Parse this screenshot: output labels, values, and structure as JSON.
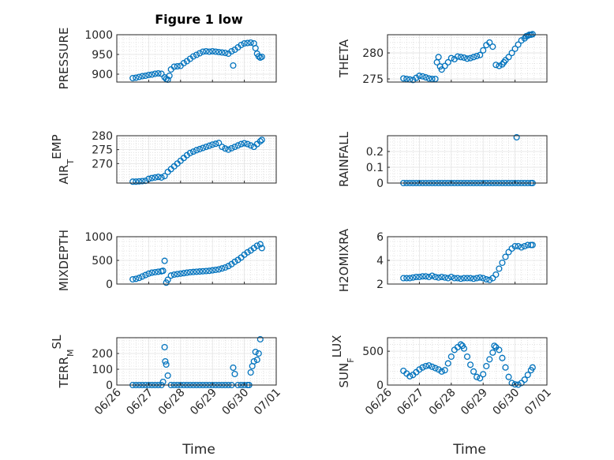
{
  "figure_title": "Figure 1 low",
  "marker_color": "#0072BD",
  "x_ticks": [
    "06/26",
    "06/27",
    "06/28",
    "06/29",
    "06/30",
    "07/01"
  ],
  "x_label": "Time",
  "chart_data": [
    {
      "type": "scatter",
      "id": "pressure",
      "ylabel": "PRESSURE",
      "title": "Figure 1 low",
      "xlim": [
        0,
        5
      ],
      "ylim": [
        880,
        1000
      ],
      "yticks": [
        900,
        950,
        1000
      ],
      "ytick_labels": [
        "900",
        "950",
        "1000"
      ],
      "xtick_labels": [
        "06/26",
        "06/27",
        "06/28",
        "06/29",
        "06/30",
        "07/01"
      ],
      "grid": true,
      "x": [
        0.5,
        0.6,
        0.7,
        0.8,
        0.9,
        1.0,
        1.1,
        1.2,
        1.3,
        1.4,
        1.5,
        1.55,
        1.6,
        1.65,
        1.7,
        1.8,
        1.9,
        2.0,
        2.1,
        2.2,
        2.3,
        2.4,
        2.5,
        2.6,
        2.7,
        2.8,
        2.9,
        3.0,
        3.1,
        3.2,
        3.3,
        3.4,
        3.5,
        3.6,
        3.65,
        3.7,
        3.8,
        3.9,
        4.0,
        4.1,
        4.2,
        4.3,
        4.35,
        4.4,
        4.45,
        4.5,
        4.55
      ],
      "y": [
        890,
        891,
        893,
        895,
        896,
        898,
        899,
        901,
        902,
        901,
        892,
        888,
        886,
        896,
        912,
        919,
        920,
        921,
        928,
        933,
        939,
        945,
        949,
        953,
        957,
        958,
        957,
        958,
        957,
        956,
        955,
        954,
        952,
        958,
        922,
        962,
        968,
        974,
        978,
        979,
        980,
        978,
        966,
        952,
        945,
        942,
        944
      ]
    },
    {
      "type": "scatter",
      "id": "theta",
      "ylabel": "THETA",
      "xlim": [
        0,
        5
      ],
      "ylim": [
        274.4,
        283.5
      ],
      "yticks": [
        275,
        280
      ],
      "ytick_labels": [
        "275",
        "280"
      ],
      "xtick_labels": [
        "06/26",
        "06/27",
        "06/28",
        "06/29",
        "06/30",
        "07/01"
      ],
      "grid": true,
      "x": [
        0.5,
        0.6,
        0.7,
        0.8,
        0.9,
        1.0,
        1.1,
        1.2,
        1.3,
        1.4,
        1.5,
        1.55,
        1.6,
        1.65,
        1.7,
        1.8,
        1.9,
        2.0,
        2.1,
        2.2,
        2.3,
        2.4,
        2.5,
        2.6,
        2.7,
        2.8,
        2.9,
        3.0,
        3.1,
        3.2,
        3.3,
        3.4,
        3.5,
        3.6,
        3.65,
        3.7,
        3.8,
        3.9,
        4.0,
        4.1,
        4.2,
        4.3,
        4.35,
        4.4,
        4.45,
        4.5,
        4.55
      ],
      "y": [
        275.1,
        275.0,
        274.9,
        274.8,
        275.2,
        275.6,
        275.5,
        275.3,
        275.1,
        275.0,
        275.0,
        278.2,
        279.2,
        277.4,
        276.8,
        277.5,
        278.2,
        279.0,
        278.8,
        279.3,
        279.2,
        279.1,
        278.9,
        279.0,
        279.2,
        279.4,
        279.6,
        280.5,
        281.5,
        282.0,
        281.2,
        277.7,
        277.5,
        277.8,
        278.2,
        278.6,
        279.2,
        280.0,
        280.8,
        281.6,
        282.4,
        282.8,
        283.2,
        283.3,
        283.5,
        283.5,
        283.6
      ]
    },
    {
      "type": "scatter",
      "id": "air_temp",
      "ylabel_main": "AIR",
      "ylabel_sub": "T",
      "ylabel_tail": "EMP",
      "xlim": [
        0,
        5
      ],
      "ylim": [
        263,
        280
      ],
      "yticks": [
        270,
        275,
        280
      ],
      "ytick_labels": [
        "270",
        "275",
        "280"
      ],
      "xtick_labels": [
        "06/26",
        "06/27",
        "06/28",
        "06/29",
        "06/30",
        "07/01"
      ],
      "grid": true,
      "x": [
        0.5,
        0.6,
        0.7,
        0.8,
        0.9,
        1.0,
        1.1,
        1.2,
        1.3,
        1.4,
        1.5,
        1.6,
        1.7,
        1.8,
        1.9,
        2.0,
        2.1,
        2.2,
        2.3,
        2.4,
        2.5,
        2.6,
        2.7,
        2.8,
        2.9,
        3.0,
        3.1,
        3.2,
        3.3,
        3.4,
        3.5,
        3.6,
        3.7,
        3.8,
        3.9,
        4.0,
        4.1,
        4.2,
        4.3,
        4.4,
        4.5,
        4.55
      ],
      "y": [
        263.5,
        263.5,
        263.6,
        263.7,
        263.8,
        264.5,
        264.8,
        265.0,
        265.2,
        265.0,
        265.5,
        267.0,
        268.0,
        269.0,
        270.0,
        271.0,
        272.0,
        273.0,
        273.8,
        274.3,
        274.8,
        275.2,
        275.6,
        276.0,
        276.4,
        276.8,
        277.1,
        277.4,
        276.0,
        275.4,
        275.0,
        275.5,
        276.0,
        276.5,
        277.0,
        277.3,
        277.0,
        276.5,
        276.0,
        277.0,
        278.0,
        278.5
      ]
    },
    {
      "type": "scatter",
      "id": "rainfall",
      "ylabel": "RAINFALL",
      "xlim": [
        0,
        5
      ],
      "ylim": [
        0,
        0.3
      ],
      "yticks": [
        0,
        0.1,
        0.2
      ],
      "ytick_labels": [
        "0",
        "0.1",
        "0.2"
      ],
      "xtick_labels": [
        "06/26",
        "06/27",
        "06/28",
        "06/29",
        "06/30",
        "07/01"
      ],
      "grid": true,
      "x": [
        0.5,
        0.6,
        0.7,
        0.8,
        0.9,
        1.0,
        1.1,
        1.2,
        1.3,
        1.4,
        1.5,
        1.6,
        1.7,
        1.8,
        1.9,
        2.0,
        2.1,
        2.2,
        2.3,
        2.4,
        2.5,
        2.6,
        2.7,
        2.8,
        2.9,
        3.0,
        3.1,
        3.2,
        3.3,
        3.4,
        3.5,
        3.6,
        3.7,
        3.8,
        3.9,
        4.0,
        4.05,
        4.1,
        4.2,
        4.3,
        4.4,
        4.5,
        4.55
      ],
      "y": [
        0,
        0,
        0,
        0,
        0,
        0,
        0,
        0,
        0,
        0,
        0,
        0,
        0,
        0,
        0,
        0,
        0,
        0,
        0,
        0,
        0,
        0,
        0,
        0,
        0,
        0,
        0,
        0,
        0,
        0,
        0,
        0,
        0,
        0,
        0,
        0,
        0.29,
        0,
        0,
        0,
        0,
        0,
        0
      ]
    },
    {
      "type": "scatter",
      "id": "mixdepth",
      "ylabel": "MIXDEPTH",
      "xlim": [
        0,
        5
      ],
      "ylim": [
        0,
        1000
      ],
      "yticks": [
        0,
        500,
        1000
      ],
      "ytick_labels": [
        "0",
        "500",
        "1000"
      ],
      "xtick_labels": [
        "06/26",
        "06/27",
        "06/28",
        "06/29",
        "06/30",
        "07/01"
      ],
      "grid": true,
      "x": [
        0.5,
        0.6,
        0.7,
        0.8,
        0.9,
        1.0,
        1.1,
        1.2,
        1.3,
        1.4,
        1.45,
        1.5,
        1.55,
        1.6,
        1.7,
        1.8,
        1.9,
        2.0,
        2.1,
        2.2,
        2.3,
        2.4,
        2.5,
        2.6,
        2.7,
        2.8,
        2.9,
        3.0,
        3.1,
        3.2,
        3.3,
        3.4,
        3.5,
        3.6,
        3.7,
        3.8,
        3.9,
        4.0,
        4.1,
        4.2,
        4.3,
        4.4,
        4.5,
        4.55
      ],
      "y": [
        100,
        110,
        130,
        160,
        190,
        220,
        240,
        250,
        260,
        270,
        280,
        490,
        30,
        90,
        180,
        200,
        210,
        220,
        230,
        240,
        250,
        255,
        260,
        265,
        270,
        275,
        280,
        290,
        300,
        310,
        330,
        350,
        380,
        420,
        470,
        510,
        560,
        620,
        670,
        710,
        760,
        810,
        840,
        760
      ]
    },
    {
      "type": "scatter",
      "id": "h2omixra",
      "ylabel": "H2OMIXRA",
      "xlim": [
        0,
        5
      ],
      "ylim": [
        2,
        6
      ],
      "yticks": [
        2,
        4,
        6
      ],
      "ytick_labels": [
        "2",
        "4",
        "6"
      ],
      "xtick_labels": [
        "06/26",
        "06/27",
        "06/28",
        "06/29",
        "06/30",
        "07/01"
      ],
      "grid": true,
      "x": [
        0.5,
        0.6,
        0.7,
        0.8,
        0.9,
        1.0,
        1.1,
        1.2,
        1.3,
        1.4,
        1.5,
        1.6,
        1.7,
        1.8,
        1.9,
        2.0,
        2.1,
        2.2,
        2.3,
        2.4,
        2.5,
        2.6,
        2.7,
        2.8,
        2.9,
        3.0,
        3.1,
        3.2,
        3.3,
        3.4,
        3.5,
        3.6,
        3.7,
        3.8,
        3.9,
        4.0,
        4.1,
        4.2,
        4.3,
        4.4,
        4.5,
        4.55
      ],
      "y": [
        2.5,
        2.5,
        2.5,
        2.55,
        2.6,
        2.6,
        2.65,
        2.65,
        2.6,
        2.7,
        2.6,
        2.55,
        2.6,
        2.55,
        2.5,
        2.6,
        2.5,
        2.5,
        2.45,
        2.5,
        2.5,
        2.5,
        2.45,
        2.5,
        2.55,
        2.5,
        2.4,
        2.35,
        2.5,
        2.8,
        3.3,
        3.8,
        4.3,
        4.7,
        5.0,
        5.2,
        5.2,
        5.1,
        5.2,
        5.3,
        5.3,
        5.3
      ]
    },
    {
      "type": "scatter",
      "id": "terr_msl",
      "ylabel_main": "TERR",
      "ylabel_sub": "M",
      "ylabel_tail": "SL",
      "xlim": [
        0,
        5
      ],
      "ylim": [
        0,
        300
      ],
      "yticks": [
        0,
        100,
        200
      ],
      "ytick_labels": [
        "0",
        "100",
        "200"
      ],
      "xtick_labels": [
        "06/26",
        "06/27",
        "06/28",
        "06/29",
        "06/30",
        "07/01"
      ],
      "grid": true,
      "x": [
        0.5,
        0.6,
        0.7,
        0.8,
        0.9,
        1.0,
        1.1,
        1.2,
        1.3,
        1.4,
        1.45,
        1.5,
        1.52,
        1.55,
        1.6,
        1.7,
        1.8,
        1.9,
        2.0,
        2.1,
        2.2,
        2.3,
        2.4,
        2.5,
        2.6,
        2.7,
        2.8,
        2.9,
        3.0,
        3.1,
        3.2,
        3.3,
        3.4,
        3.5,
        3.6,
        3.65,
        3.7,
        3.8,
        3.9,
        4.0,
        4.1,
        4.15,
        4.2,
        4.25,
        4.3,
        4.35,
        4.4,
        4.45,
        4.5
      ],
      "y": [
        0,
        0,
        0,
        0,
        0,
        0,
        0,
        0,
        0,
        0,
        20,
        240,
        150,
        130,
        60,
        0,
        0,
        0,
        0,
        0,
        0,
        0,
        0,
        0,
        0,
        0,
        0,
        0,
        0,
        0,
        0,
        0,
        0,
        0,
        0,
        110,
        70,
        0,
        0,
        0,
        0,
        0,
        80,
        120,
        150,
        210,
        160,
        200,
        290
      ]
    },
    {
      "type": "scatter",
      "id": "sun_flux",
      "ylabel_main": "SUN",
      "ylabel_sub": "F",
      "ylabel_tail": "LUX",
      "xlim": [
        0,
        5
      ],
      "ylim": [
        0,
        700
      ],
      "yticks": [
        0,
        500
      ],
      "ytick_labels": [
        "0",
        "500"
      ],
      "xtick_labels": [
        "06/26",
        "06/27",
        "06/28",
        "06/29",
        "06/30",
        "07/01"
      ],
      "grid": true,
      "x": [
        0.5,
        0.6,
        0.7,
        0.8,
        0.9,
        1.0,
        1.1,
        1.2,
        1.3,
        1.4,
        1.5,
        1.6,
        1.7,
        1.8,
        1.9,
        2.0,
        2.1,
        2.2,
        2.3,
        2.35,
        2.4,
        2.5,
        2.6,
        2.7,
        2.8,
        2.9,
        3.0,
        3.1,
        3.2,
        3.3,
        3.35,
        3.4,
        3.5,
        3.6,
        3.7,
        3.8,
        3.9,
        4.0,
        4.1,
        4.2,
        4.3,
        4.4,
        4.5,
        4.55
      ],
      "y": [
        210,
        170,
        130,
        150,
        190,
        230,
        260,
        280,
        290,
        270,
        250,
        230,
        200,
        220,
        320,
        420,
        520,
        560,
        600,
        580,
        540,
        420,
        300,
        200,
        120,
        100,
        160,
        280,
        380,
        480,
        580,
        560,
        520,
        400,
        260,
        120,
        30,
        10,
        5,
        30,
        80,
        150,
        220,
        260
      ]
    }
  ]
}
